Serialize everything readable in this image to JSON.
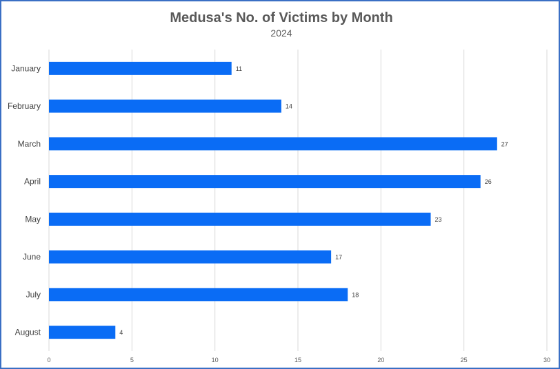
{
  "chart_data": {
    "type": "bar",
    "orientation": "horizontal",
    "title": "Medusa's No. of Victims by Month",
    "subtitle": "2024",
    "xlabel": "",
    "ylabel": "",
    "categories": [
      "January",
      "February",
      "March",
      "April",
      "May",
      "June",
      "July",
      "August"
    ],
    "values": [
      11,
      14,
      27,
      26,
      23,
      17,
      18,
      4
    ],
    "xlim": [
      0,
      30
    ],
    "ticks": [
      "0",
      "5",
      "10",
      "15",
      "20",
      "25",
      "30"
    ],
    "grid": true,
    "legend": "none",
    "bar_color": "#0a6cf5"
  }
}
